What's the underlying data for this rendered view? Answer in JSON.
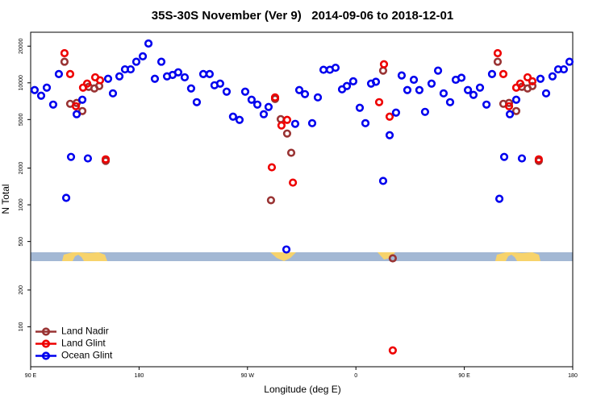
{
  "chart_data": {
    "type": "scatter",
    "title": "35S-30S November (Ver 9)   2014-09-06 to 2018-12-01",
    "x_label": "Longitude (deg E)",
    "y_label": "N Total",
    "log_y": true,
    "legend": "bottom left",
    "xlim": [
      90,
      540
    ],
    "ylim": [
      47,
      26000
    ],
    "xticks": [
      {
        "value": 90,
        "label": "90 E"
      },
      180,
      {
        "value": 270,
        "label": "90 W"
      },
      {
        "value": 360,
        "label": "0"
      },
      {
        "value": 450,
        "label": "90 E"
      },
      {
        "value": 540,
        "label": "180"
      }
    ],
    "yticks": [
      100,
      200,
      500,
      1000,
      2000,
      5000,
      10000,
      20000
    ],
    "series": [
      {
        "name": "Land Nadir",
        "color": "#993333",
        "x": [
          118.1,
          122.8,
          128.2,
          132.9,
          138.2,
          142.9,
          146.9,
          152.3,
          289.5,
          292.9,
          297.6,
          302.9,
          306.3,
          382.6,
          390.6,
          477.7,
          482.4,
          487.1,
          493.1,
          497.8,
          502.5,
          506.5,
          511.8
        ],
        "values": [
          14900,
          6730,
          6840,
          5870,
          9270,
          8990,
          9410,
          2290,
          1090,
          7380,
          5040,
          3840,
          2670,
          12600,
          364,
          14900,
          6730,
          6840,
          5870,
          9270,
          8990,
          9410,
          2290
        ]
      },
      {
        "name": "Land Glint",
        "color": "#ee0000",
        "x": [
          118.1,
          122.8,
          127.5,
          133.5,
          136.9,
          143.6,
          147.6,
          152.3,
          290.2,
          292.9,
          298.2,
          302.9,
          307.7,
          379.3,
          383.3,
          388.0,
          390.6,
          477.7,
          482.4,
          487.1,
          493.1,
          496.4,
          502.5,
          506.5,
          511.8
        ],
        "values": [
          17500,
          11800,
          6430,
          9130,
          9850,
          11100,
          10500,
          2360,
          2030,
          7600,
          4470,
          4970,
          1520,
          6940,
          14200,
          5280,
          64,
          17500,
          11800,
          6430,
          9130,
          9850,
          11100,
          10300,
          2360
        ]
      },
      {
        "name": "Ocean Glint",
        "color": "#0000ee",
        "x": [
          93.3,
          98.7,
          103.4,
          108.7,
          113.4,
          119.5,
          123.5,
          128.2,
          132.9,
          137.5,
          154.3,
          158.3,
          163.7,
          168.3,
          173.0,
          177.7,
          183.1,
          187.8,
          193.1,
          198.5,
          203.2,
          207.8,
          212.5,
          217.9,
          223.2,
          227.9,
          233.3,
          238.6,
          242.6,
          247.3,
          252.7,
          258.0,
          263.4,
          268.1,
          273.4,
          278.2,
          283.5,
          287.5,
          302.3,
          309.6,
          313.0,
          317.7,
          323.7,
          328.4,
          333.1,
          338.4,
          343.1,
          348.5,
          352.5,
          357.8,
          363.2,
          367.9,
          372.6,
          376.6,
          382.6,
          388.0,
          393.3,
          398.0,
          402.7,
          408.1,
          412.7,
          417.4,
          422.8,
          428.2,
          432.8,
          438.2,
          442.9,
          447.6,
          453.0,
          457.6,
          463.0,
          468.4,
          473.0,
          479.1,
          483.1,
          487.8,
          493.1,
          497.8,
          513.2,
          517.9,
          523.2,
          527.9,
          532.6,
          537.3
        ],
        "values": [
          8720,
          7840,
          9130,
          6630,
          11800,
          1140,
          2470,
          5530,
          7270,
          2400,
          10800,
          8200,
          11300,
          12900,
          12900,
          14900,
          16500,
          21000,
          10800,
          14900,
          11300,
          11600,
          12200,
          11100,
          8990,
          6940,
          11800,
          11800,
          9550,
          9850,
          8460,
          5280,
          4970,
          8460,
          7270,
          6630,
          5530,
          6340,
          430,
          4610,
          8720,
          8080,
          4670,
          7600,
          12800,
          12800,
          13300,
          8850,
          9410,
          10300,
          6240,
          4670,
          9850,
          10200,
          1570,
          3720,
          5700,
          11500,
          8720,
          10600,
          8720,
          5780,
          9850,
          12600,
          8200,
          6940,
          10600,
          11000,
          8720,
          7960,
          9130,
          6630,
          11800,
          1120,
          2470,
          5530,
          7270,
          2400,
          10800,
          8200,
          11300,
          12900,
          12900,
          14900
        ]
      }
    ]
  }
}
